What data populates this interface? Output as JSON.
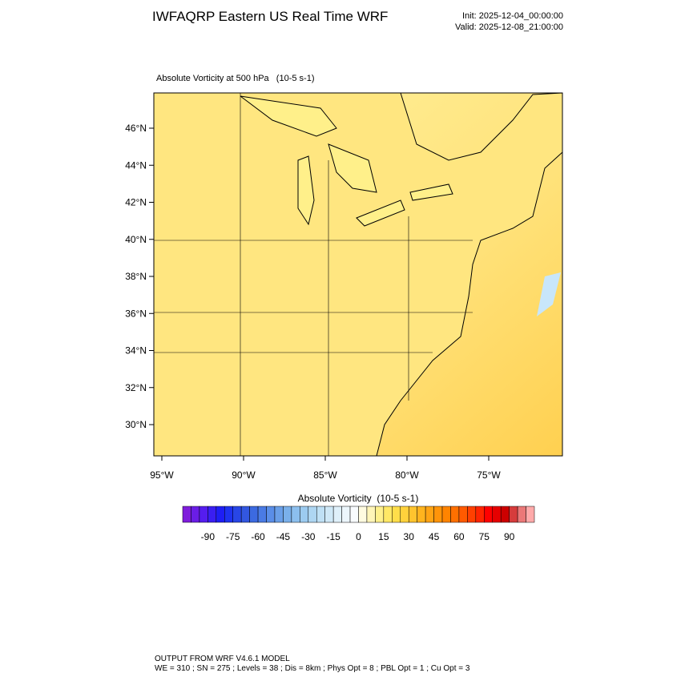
{
  "header": {
    "title": "IWFAQRP Eastern US Real Time WRF",
    "init": "Init: 2025-12-04_00:00:00",
    "valid": "Valid: 2025-12-08_21:00:00"
  },
  "map": {
    "title": "Absolute Vorticity at 500 hPa   (10-5 s-1)",
    "lat_labels": [
      "46°N",
      "44°N",
      "42°N",
      "40°N",
      "38°N",
      "36°N",
      "34°N",
      "32°N",
      "30°N"
    ],
    "lon_labels": [
      "95°W",
      "90°W",
      "85°W",
      "80°W",
      "75°W"
    ]
  },
  "colorbar": {
    "title": "Absolute Vorticity  (10-5 s-1)",
    "colors": [
      "#7f1ddc",
      "#6a1de6",
      "#551def",
      "#3a1ef2",
      "#1e1ef5",
      "#1e32f0",
      "#2846e6",
      "#3257e0",
      "#3c6ae0",
      "#4a7be4",
      "#5a8ee8",
      "#6a9fe8",
      "#7ab0ea",
      "#8cbfee",
      "#9ccbf0",
      "#aed6f2",
      "#bfe0f5",
      "#cfe8f7",
      "#dff0fa",
      "#ecf6fc",
      "#f8fbfe",
      "#fffbe0",
      "#fff5b8",
      "#fff08c",
      "#ffe866",
      "#ffde4a",
      "#ffd23c",
      "#ffc42e",
      "#ffb41e",
      "#ffa414",
      "#ff940a",
      "#ff8400",
      "#ff7000",
      "#ff5a00",
      "#ff4000",
      "#ff2400",
      "#ff0000",
      "#e60000",
      "#cc0000",
      "#d63c3c",
      "#eb7878",
      "#ffaaaa"
    ],
    "labels": [
      -90,
      -75,
      -60,
      -45,
      -30,
      -15,
      0,
      15,
      30,
      45,
      60,
      75,
      90
    ]
  },
  "footer": {
    "line1": "OUTPUT FROM WRF V4.6.1 MODEL",
    "line2": "WE = 310 ; SN = 275 ; Levels = 38 ; Dis = 8km ; Phys Opt = 8 ; PBL Opt = 1 ; Cu Opt = 3"
  }
}
